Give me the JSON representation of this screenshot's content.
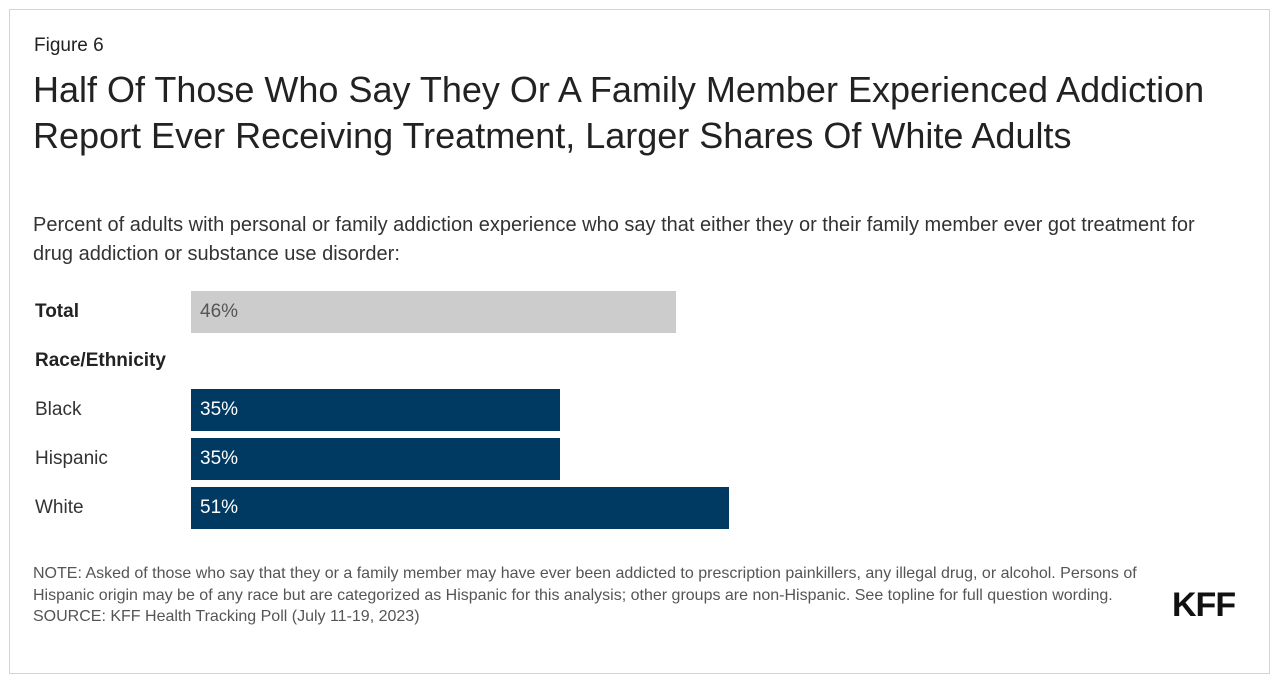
{
  "figure_label": "Figure 6",
  "logo": "KFF",
  "chart_data": {
    "type": "bar",
    "orientation": "horizontal",
    "title": "Half Of Those Who Say They Or A Family Member Experienced Addiction Report Ever Receiving Treatment, Larger Shares Of White Adults",
    "subtitle": "Percent of adults with personal or family addiction experience who say that either they or their family member ever got treatment for drug addiction or substance use disorder:",
    "group_label": "Race/Ethnicity",
    "categories": [
      "Total",
      "Black",
      "Hispanic",
      "White"
    ],
    "values": [
      46,
      35,
      35,
      51
    ],
    "data_labels": [
      "46%",
      "35%",
      "35%",
      "51%"
    ],
    "colors": [
      "#cccccc",
      "#003a63",
      "#003a63",
      "#003a63"
    ],
    "label_colors": [
      "#555555",
      "#ffffff",
      "#ffffff",
      "#ffffff"
    ],
    "xlim": [
      0,
      100
    ],
    "grid": false
  },
  "note": "NOTE: Asked of those who say that they or a family member may have ever been addicted to prescription painkillers, any illegal drug, or alcohol. Persons of Hispanic origin may be of any race but are categorized as Hispanic for this analysis; other groups are non-Hispanic. See topline for full question wording.",
  "source": "SOURCE: KFF Health Tracking Poll (July 11-19, 2023)"
}
